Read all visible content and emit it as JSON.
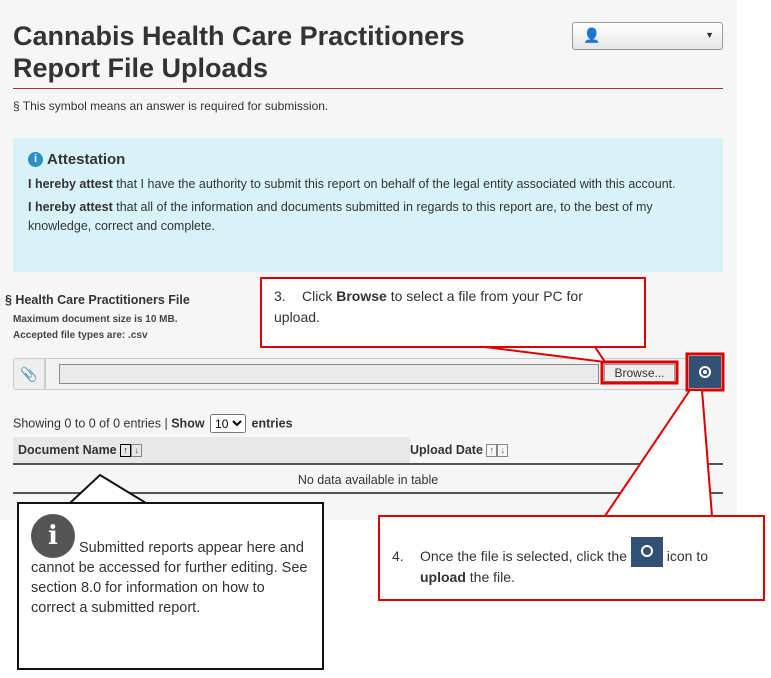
{
  "header": {
    "title": "Cannabis Health Care Practitioners Report File Uploads",
    "user_icon": "user-icon",
    "dropdown_icon": "caret-down-icon"
  },
  "required_note": "§ This symbol means an answer is required for submission.",
  "attestation": {
    "title": "Attestation",
    "p1_bold": "I hereby attest",
    "p1": " that I have the authority to submit this report on behalf of the legal entity associated with this account.",
    "p2_bold": "I hereby attest",
    "p2": " that all of the information and documents submitted in regards to this report are, to the best of my knowledge, correct and complete."
  },
  "file": {
    "label": "§ Health Care Practitioners File",
    "max_size": "Maximum document size is 10 MB.",
    "types": "Accepted file types are: .csv",
    "value": "",
    "browse_label": "Browse...",
    "upload_icon": "upload-icon"
  },
  "table": {
    "showing": "Showing 0 to 0 of 0 entries |",
    "show_label": "Show",
    "page_size": "10",
    "entries_label": "entries",
    "columns": [
      "Document Name",
      "Upload Date"
    ],
    "empty": "No data available in table"
  },
  "callouts": {
    "step3": {
      "num": "3.",
      "pre": "Click ",
      "bold": "Browse",
      "post": " to select a file from your PC for upload."
    },
    "step4": {
      "num": "4.",
      "pre": "Once the file is selected, click the ",
      "post": " icon to ",
      "bold": "upload",
      "end": " the file."
    },
    "info": "Submitted reports appear here and cannot be accessed for further editing. See section 8.0 for information on how to correct a submitted report."
  },
  "colors": {
    "accent": "#335075",
    "highlight": "#dd0000",
    "attestation_bg": "#d8f3f8"
  }
}
